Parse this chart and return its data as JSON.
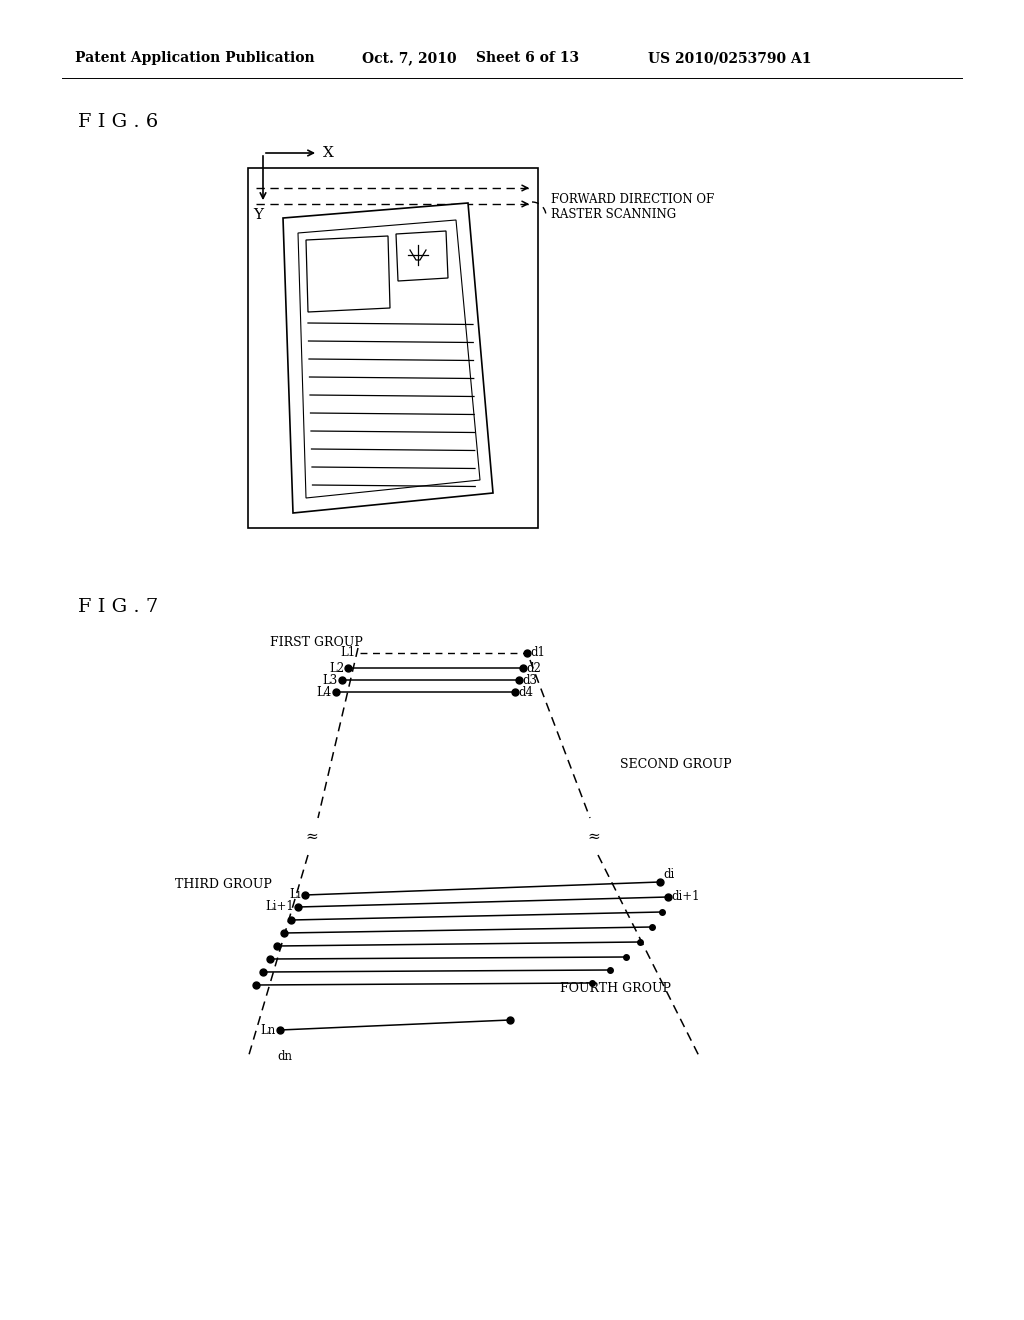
{
  "bg_color": "#ffffff",
  "header_text": "Patent Application Publication",
  "header_date": "Oct. 7, 2010",
  "header_sheet": "Sheet 6 of 13",
  "header_patent": "US 2010/0253790 A1",
  "fig6_label": "F I G . 6",
  "fig7_label": "F I G . 7",
  "text_color": "#000000"
}
